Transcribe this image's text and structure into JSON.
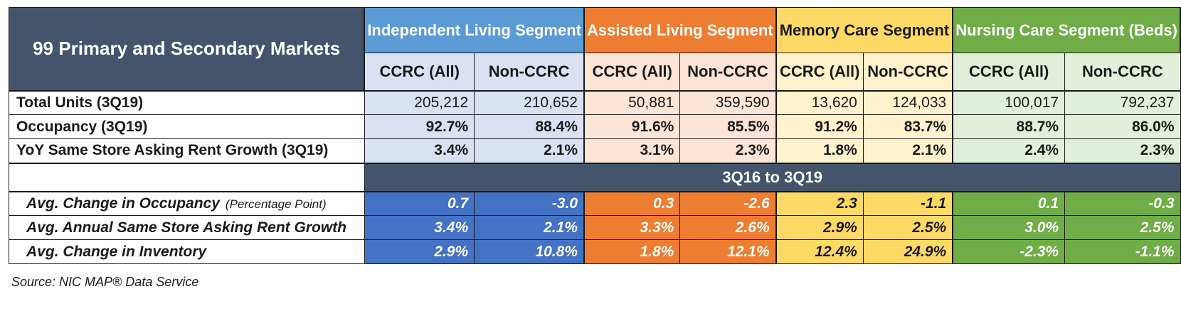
{
  "table": {
    "title": "99 Primary and Secondary Markets",
    "segments": [
      {
        "label": "Independent Living Segment",
        "sub": [
          "CCRC (All)",
          "Non-CCRC"
        ]
      },
      {
        "label": "Assisted Living Segment",
        "sub": [
          "CCRC (All)",
          "Non-CCRC"
        ]
      },
      {
        "label": "Memory Care Segment",
        "sub": [
          "CCRC (All)",
          "Non-CCRC"
        ]
      },
      {
        "label": "Nursing Care Segment (Beds)",
        "sub": [
          "CCRC (All)",
          "Non-CCRC"
        ]
      }
    ],
    "colors": {
      "il_header": "#5b9bd5",
      "al_header": "#ed7d31",
      "mc_header": "#ffd966",
      "nc_header": "#70ad47",
      "il_light": "#d9e1f2",
      "al_light": "#fce4d6",
      "mc_light": "#fff2cc",
      "nc_light": "#e2efda",
      "il_dark": "#4472c4",
      "al_dark": "#ed7d31",
      "mc_dark": "#ffd966",
      "nc_dark": "#70ad47",
      "title_bg": "#44546a"
    },
    "rows": [
      {
        "label": "Total Units (3Q19)",
        "values": [
          "205,212",
          "210,652",
          "50,881",
          "359,590",
          "13,620",
          "124,033",
          "100,017",
          "792,237"
        ]
      },
      {
        "label": "Occupancy (3Q19)",
        "values": [
          "92.7%",
          "88.4%",
          "91.6%",
          "85.5%",
          "91.2%",
          "83.7%",
          "88.7%",
          "86.0%"
        ]
      },
      {
        "label": "YoY Same Store Asking Rent Growth (3Q19)",
        "values": [
          "3.4%",
          "2.1%",
          "3.1%",
          "2.3%",
          "1.8%",
          "2.1%",
          "2.4%",
          "2.3%"
        ]
      }
    ],
    "period_band": "3Q16 to 3Q19",
    "change_rows": [
      {
        "label": "Avg. Change in Occupancy",
        "note": "(Percentage Point)",
        "values": [
          "0.7",
          "-3.0",
          "0.3",
          "-2.6",
          "2.3",
          "-1.1",
          "0.1",
          "-0.3"
        ]
      },
      {
        "label": "Avg. Annual Same Store Asking Rent Growth",
        "note": "",
        "values": [
          "3.4%",
          "2.1%",
          "3.3%",
          "2.6%",
          "2.9%",
          "2.5%",
          "3.0%",
          "2.5%"
        ]
      },
      {
        "label": "Avg. Change in Inventory",
        "note": "",
        "values": [
          "2.9%",
          "10.8%",
          "1.8%",
          "12.1%",
          "12.4%",
          "24.9%",
          "-2.3%",
          "-1.1%"
        ]
      }
    ]
  },
  "source": "Source: NIC MAP® Data Service"
}
